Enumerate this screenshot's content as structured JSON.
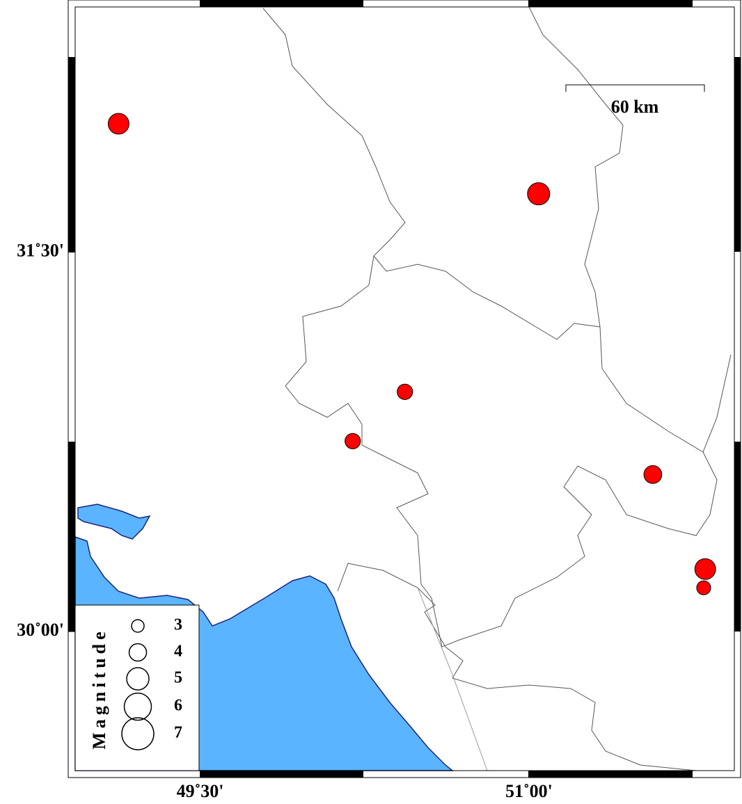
{
  "chart_data": {
    "type": "scatter",
    "xlim": [
      48.93,
      51.94
    ],
    "ylim": [
      29.45,
      32.47
    ],
    "xticks": [
      {
        "value": 49.5,
        "label": "49˚30'"
      },
      {
        "value": 51,
        "label": "51˚00'"
      }
    ],
    "yticks": [
      {
        "value": 30,
        "label": "30˚00'"
      },
      {
        "value": 31.5,
        "label": "31˚30'"
      }
    ],
    "x": [
      49.128,
      51.044,
      50.434,
      50.196,
      51.565,
      51.804,
      51.797
    ],
    "y": [
      32.008,
      31.731,
      30.948,
      30.753,
      30.621,
      30.247,
      30.173
    ],
    "sizes": [
      4.7,
      5.0,
      3.6,
      3.6,
      4.1,
      4.7,
      3.3
    ],
    "color": "#ff0000",
    "legend": {
      "title": "Magnitude",
      "values": [
        3,
        4,
        5,
        6,
        7
      ]
    },
    "scale_label": "60 km"
  }
}
